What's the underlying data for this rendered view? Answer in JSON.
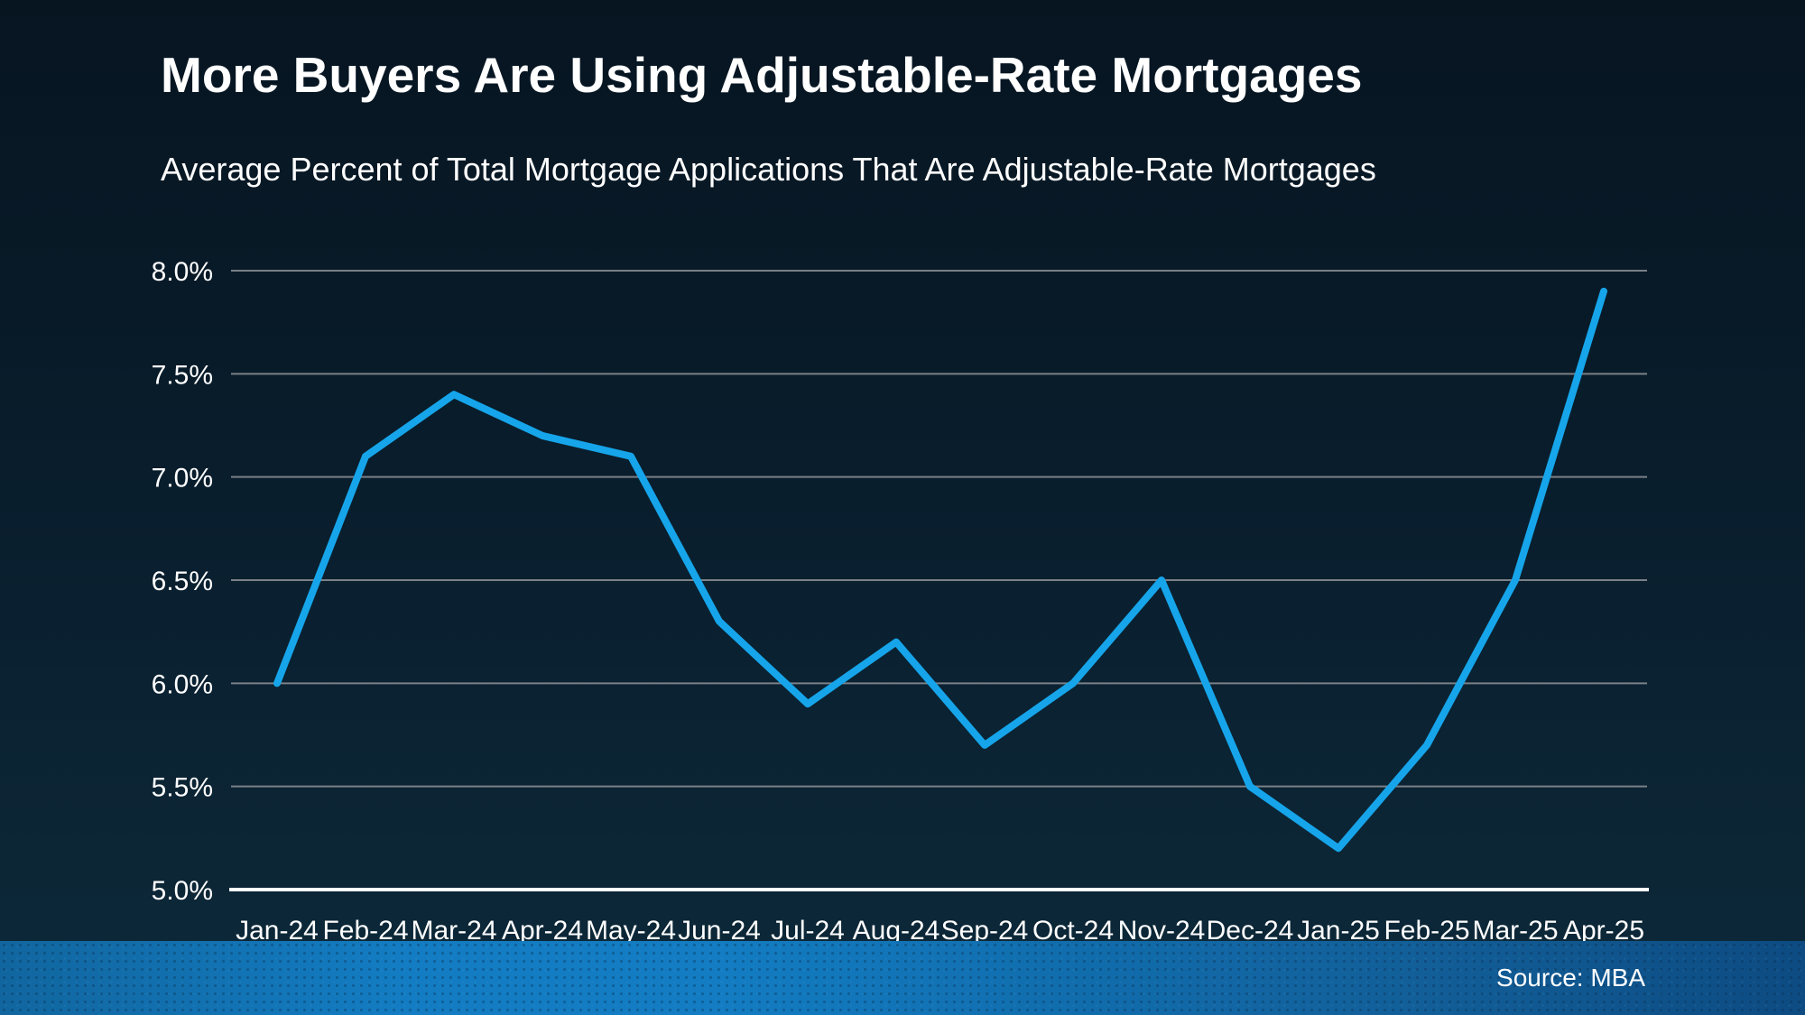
{
  "header": {
    "title": "More Buyers Are Using Adjustable-Rate Mortgages",
    "subtitle": "Average Percent of Total Mortgage Applications That Are Adjustable-Rate Mortgages"
  },
  "footer": {
    "source": "Source: MBA"
  },
  "chart_data": {
    "type": "line",
    "title": "More Buyers Are Using Adjustable-Rate Mortgages",
    "subtitle": "Average Percent of Total Mortgage Applications That Are Adjustable-Rate Mortgages",
    "categories": [
      "Jan-24",
      "Feb-24",
      "Mar-24",
      "Apr-24",
      "May-24",
      "Jun-24",
      "Jul-24",
      "Aug-24",
      "Sep-24",
      "Oct-24",
      "Nov-24",
      "Dec-24",
      "Jan-25",
      "Feb-25",
      "Mar-25",
      "Apr-25"
    ],
    "values": [
      6.0,
      7.1,
      7.4,
      7.2,
      7.1,
      6.3,
      5.9,
      6.2,
      5.7,
      6.0,
      6.5,
      5.5,
      5.2,
      5.7,
      6.5,
      7.9
    ],
    "xlabel": "",
    "ylabel": "",
    "ylim": [
      5.0,
      8.0
    ],
    "ytick_step": 0.5,
    "ytick_suffix": "%",
    "grid": "horizontal",
    "legend": "none",
    "line_color": "#16a5ea",
    "grid_color": "#7b8087",
    "axis_color": "#ffffff",
    "tick_label_color": "#ffffff"
  }
}
